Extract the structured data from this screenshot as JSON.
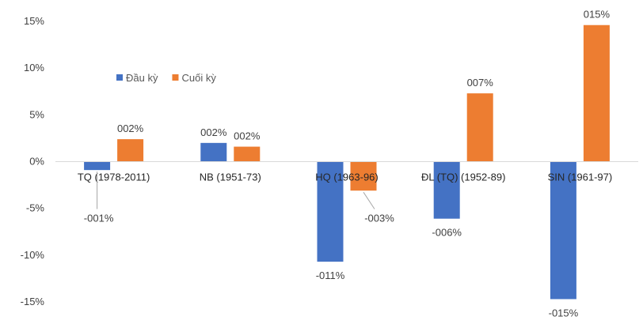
{
  "chart_data": {
    "type": "bar",
    "categories": [
      "TQ (1978-2011)",
      "NB (1951-73)",
      "HQ (1963-96)",
      "ĐL (TQ) (1952-89)",
      "SIN (1961-97)"
    ],
    "series": [
      {
        "name": "Đầu kỳ",
        "color": "#4472C4",
        "values": [
          -0.9,
          2.0,
          -10.7,
          -6.1,
          -14.7
        ],
        "labels": [
          "-001%",
          "002%",
          "-011%",
          "-006%",
          "-015%"
        ]
      },
      {
        "name": "Cuối kỳ",
        "color": "#ED7D31",
        "values": [
          2.4,
          1.6,
          -3.1,
          7.3,
          14.6
        ],
        "labels": [
          "002%",
          "002%",
          "-003%",
          "007%",
          "015%"
        ]
      }
    ],
    "ylim": [
      -15,
      15
    ],
    "yticks": [
      15,
      10,
      5,
      0,
      -5,
      -10,
      -15
    ],
    "ytick_labels": [
      "15%",
      "10%",
      "5%",
      "0%",
      "-5%",
      "-10%",
      "-15%"
    ],
    "legend_position": "top-left",
    "grid": false,
    "title": "",
    "xlabel": "",
    "ylabel": ""
  }
}
